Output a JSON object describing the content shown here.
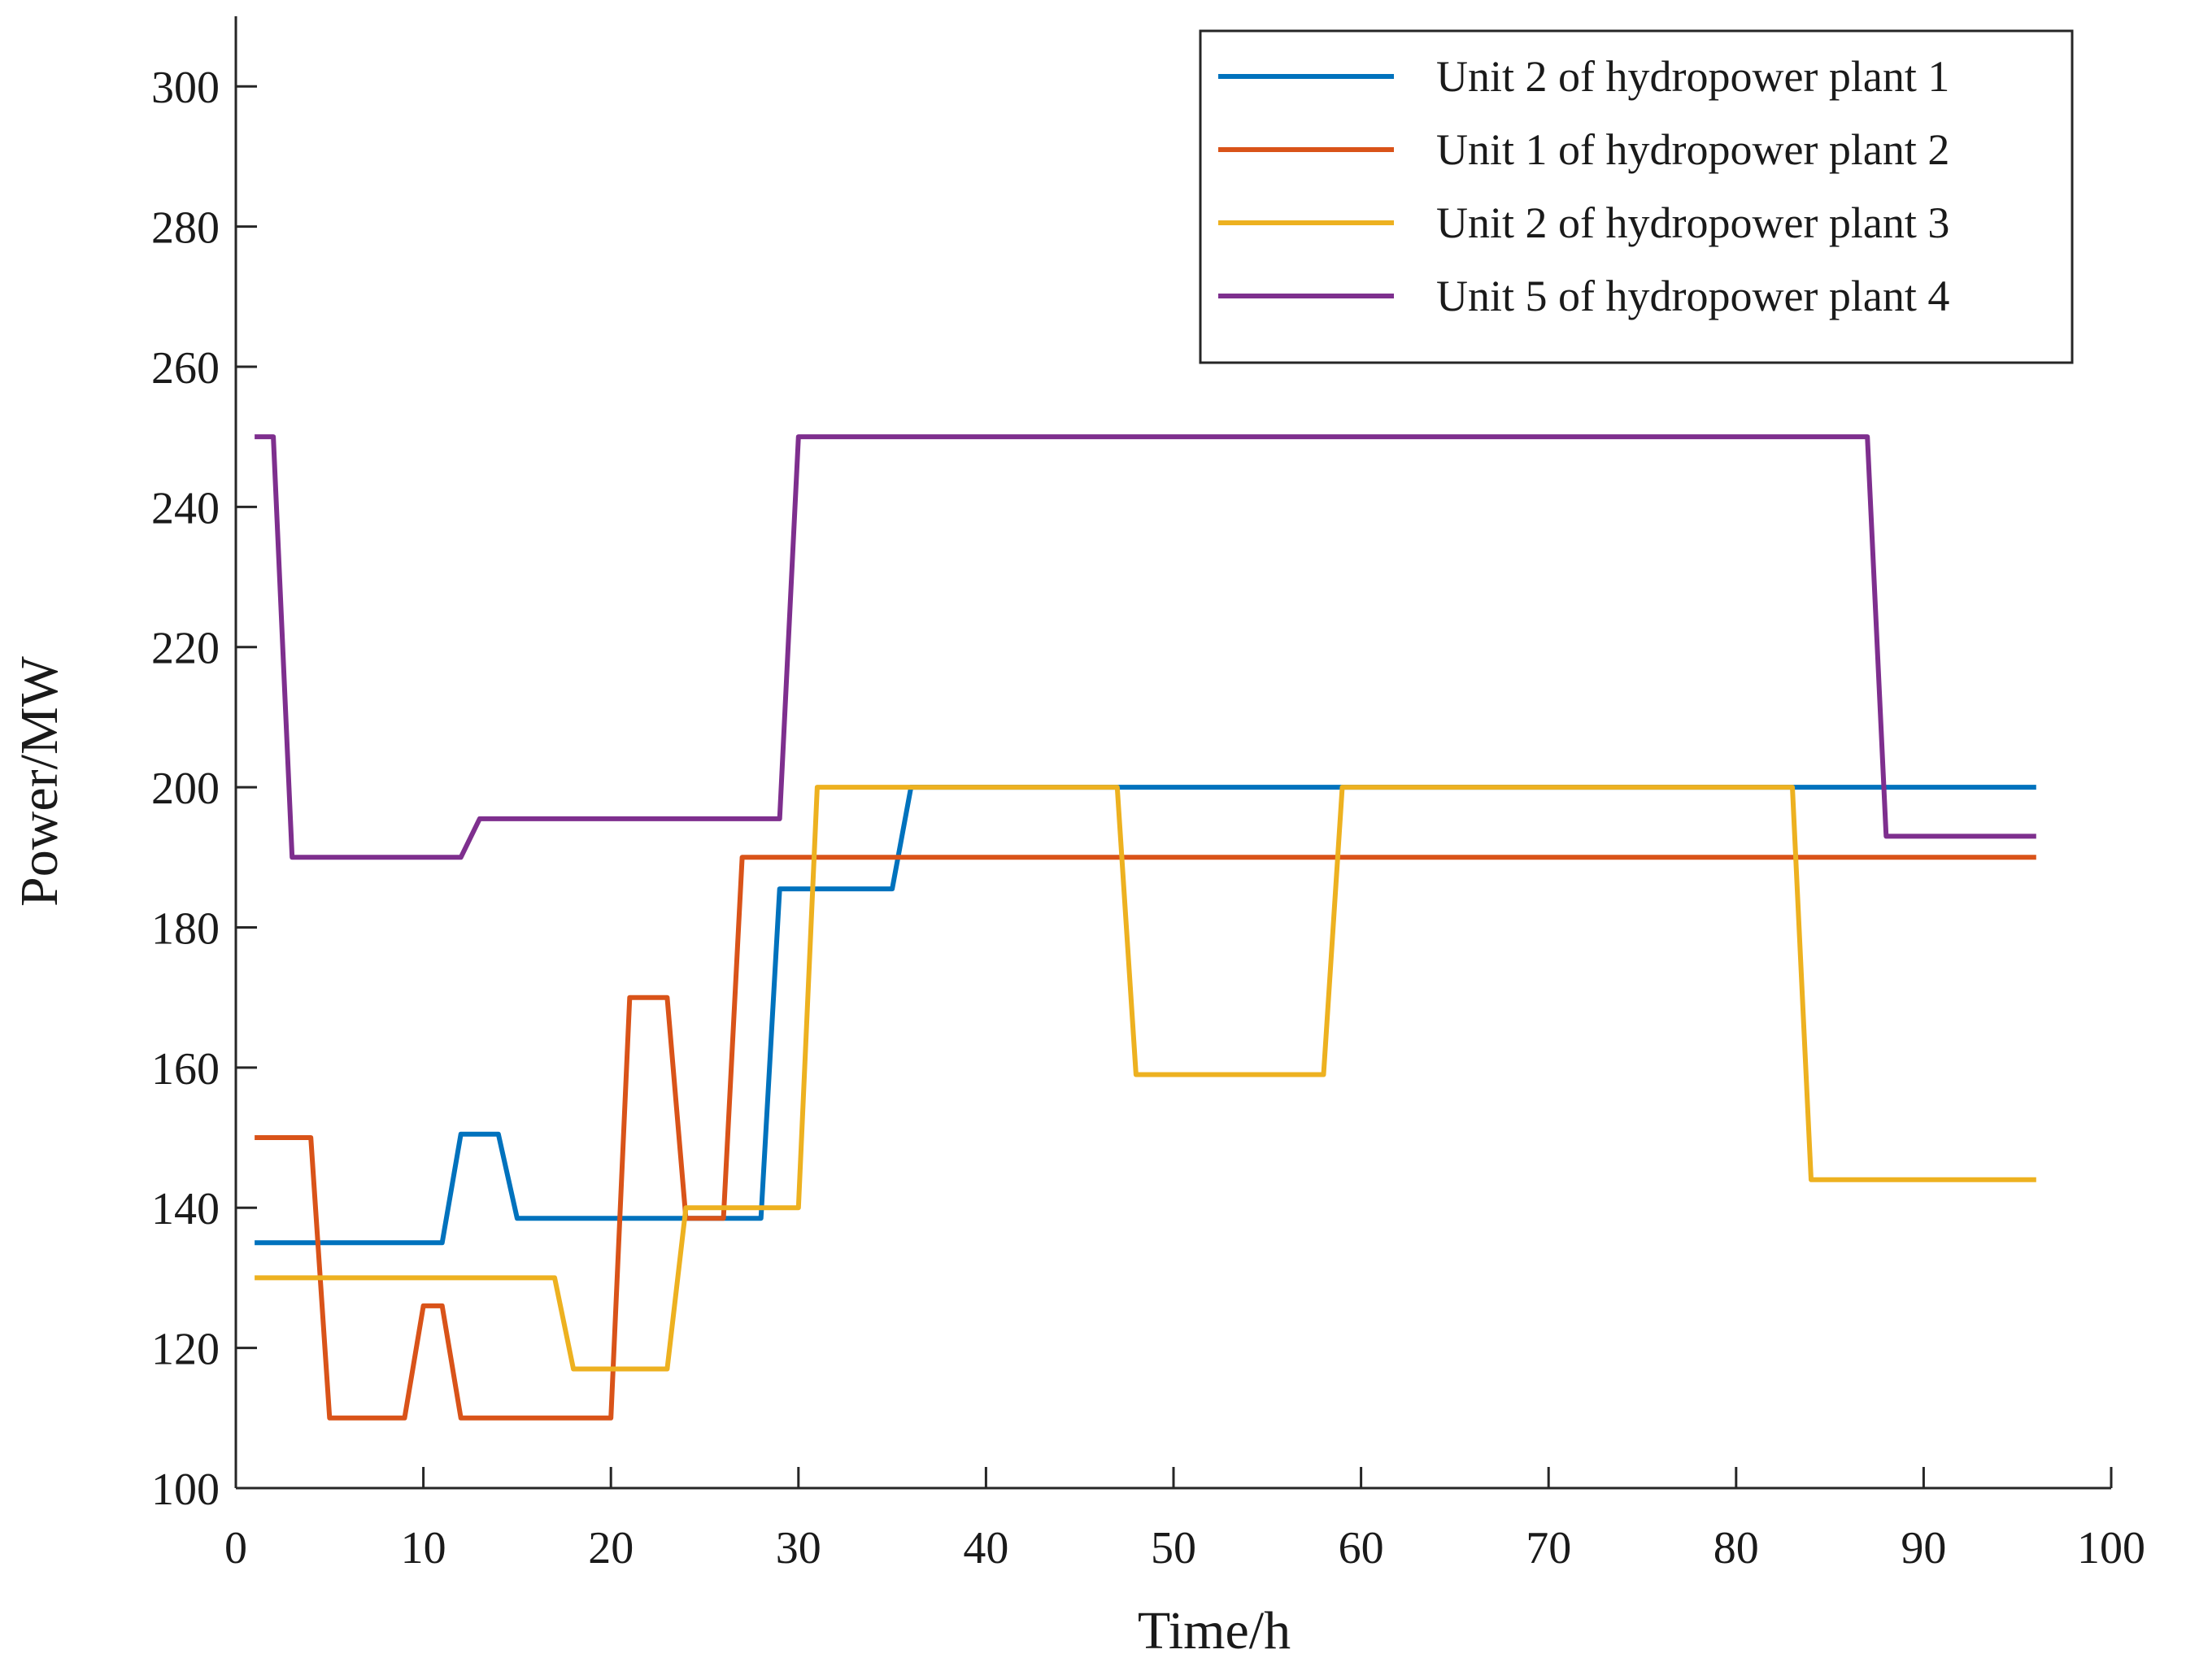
{
  "chart_data": {
    "type": "line",
    "title": "",
    "xlabel": "Time/h",
    "ylabel": "Power/MW",
    "xlim": [
      0,
      100
    ],
    "ylim": [
      100,
      310
    ],
    "xticks": [
      0,
      10,
      20,
      30,
      40,
      50,
      60,
      70,
      80,
      90,
      100
    ],
    "yticks": [
      100,
      120,
      140,
      160,
      180,
      200,
      220,
      240,
      260,
      280,
      300
    ],
    "grid": false,
    "legend_position": "top-right",
    "series": [
      {
        "name": "Unit 2 of hydropower plant 1",
        "color": "#0072BD",
        "x": [
          1,
          11,
          12,
          14,
          15,
          28,
          29,
          35,
          36,
          96
        ],
        "y": [
          135,
          135,
          150.5,
          150.5,
          138.5,
          138.5,
          185.5,
          185.5,
          200,
          200
        ]
      },
      {
        "name": "Unit 1 of hydropower plant 2",
        "color": "#D95319",
        "x": [
          1,
          4,
          5,
          9,
          10,
          11,
          12,
          20,
          21,
          23,
          24,
          26,
          27,
          96
        ],
        "y": [
          150,
          150,
          110,
          110,
          126,
          126,
          110,
          110,
          170,
          170,
          138.5,
          138.5,
          190,
          190
        ]
      },
      {
        "name": "Unit 2 of hydropower plant 3",
        "color": "#EDB120",
        "x": [
          1,
          17,
          18,
          23,
          24,
          30,
          31,
          47,
          48,
          58,
          59,
          83,
          84,
          96
        ],
        "y": [
          130,
          130,
          117,
          117,
          140,
          140,
          200,
          200,
          159,
          159,
          200,
          200,
          144,
          144
        ]
      },
      {
        "name": "Unit 5 of hydropower plant 4",
        "color": "#7E2F8E",
        "x": [
          1,
          2,
          3,
          12,
          13,
          29,
          30,
          87,
          88,
          96
        ],
        "y": [
          250,
          250,
          190,
          190,
          195.5,
          195.5,
          250,
          250,
          193,
          193
        ]
      }
    ]
  }
}
